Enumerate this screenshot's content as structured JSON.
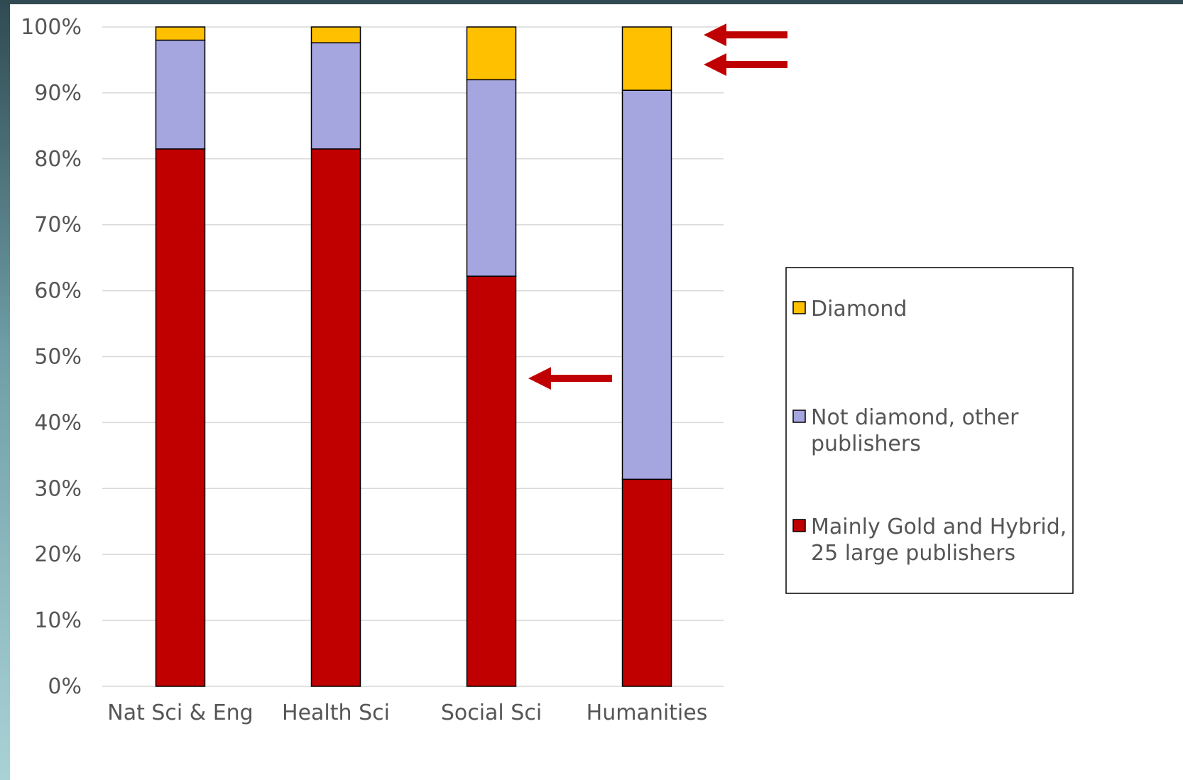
{
  "chart_data": {
    "type": "bar",
    "stacked": true,
    "categories": [
      "Nat Sci & Eng",
      "Health Sci",
      "Social Sci",
      "Humanities"
    ],
    "series": [
      {
        "name": "Mainly Gold and Hybrid, 25 large publishers",
        "name_lines": [
          "Mainly Gold and Hybrid,",
          "25 large publishers"
        ],
        "color": "#c00000",
        "values": [
          81.5,
          81.5,
          62.2,
          31.4
        ]
      },
      {
        "name": "Not diamond, other publishers",
        "name_lines": [
          "Not diamond, other",
          "publishers"
        ],
        "color": "#a5a5e0",
        "values": [
          16.5,
          16.1,
          29.8,
          59.0
        ]
      },
      {
        "name": "Diamond",
        "name_lines": [
          "Diamond"
        ],
        "color": "#ffc000",
        "values": [
          2.0,
          2.4,
          8.0,
          9.6
        ]
      }
    ],
    "ylim": [
      0,
      100
    ],
    "y_ticks": [
      "0%",
      "10%",
      "20%",
      "30%",
      "40%",
      "50%",
      "60%",
      "70%",
      "80%",
      "90%",
      "100%"
    ],
    "grid": true,
    "legend_position": "right",
    "annotations": [
      {
        "type": "arrow",
        "direction": "left",
        "color": "#c00000",
        "points_to": "Humanities, Diamond segment top",
        "at_value": 98.8
      },
      {
        "type": "arrow",
        "direction": "left",
        "color": "#c00000",
        "points_to": "Humanities, Diamond segment",
        "at_value": 94.3
      },
      {
        "type": "arrow",
        "direction": "left",
        "color": "#c00000",
        "points_to": "Social Sci, Mainly Gold and Hybrid segment",
        "at_value": 46.7
      }
    ]
  }
}
